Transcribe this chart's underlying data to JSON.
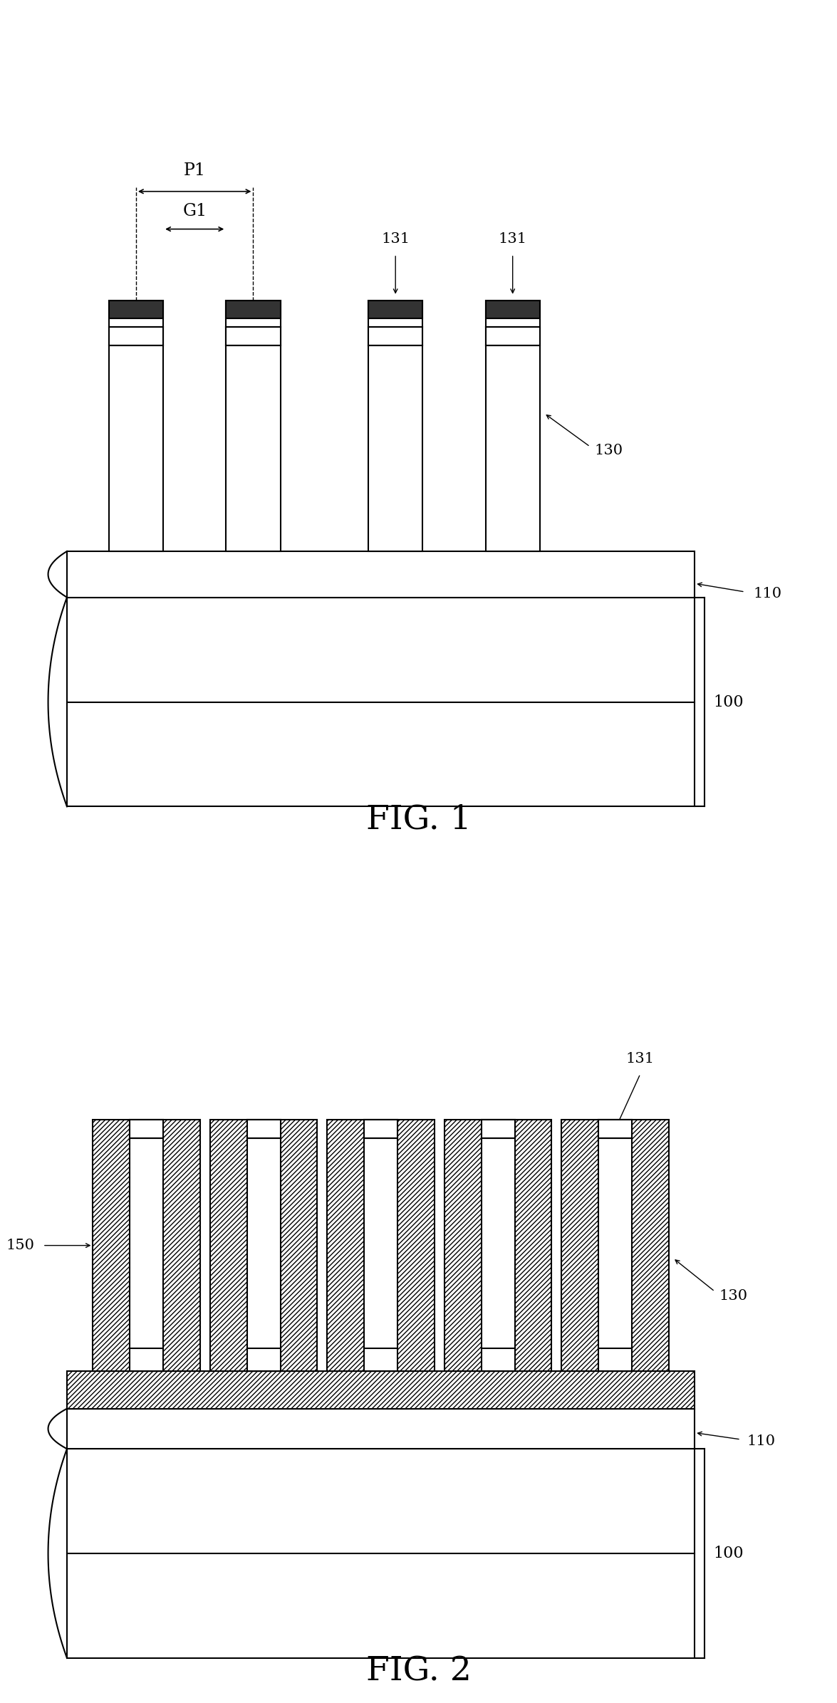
{
  "bg_color": "#ffffff",
  "line_color": "#000000",
  "fig1_title": "FIG. 1",
  "fig2_title": "FIG. 2",
  "lw": 1.5
}
